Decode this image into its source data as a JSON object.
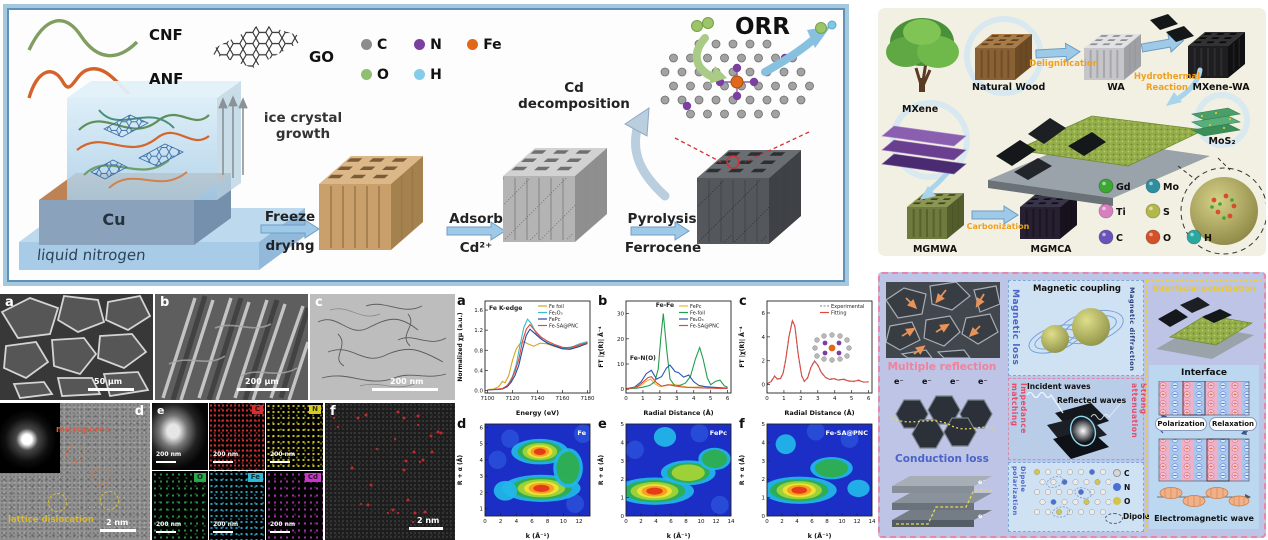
{
  "panel_synthesis": {
    "materials": {
      "cnf": "CNF",
      "anf": "ANF",
      "go": "GO"
    },
    "atom_legend": [
      {
        "symbol": "C",
        "color": "#8c8c8c"
      },
      {
        "symbol": "N",
        "color": "#7b3fa0"
      },
      {
        "symbol": "Fe",
        "color": "#e06818"
      },
      {
        "symbol": "O",
        "color": "#8fbf6f"
      },
      {
        "symbol": "H",
        "color": "#85cce8"
      }
    ],
    "scene": {
      "substrate": "Cu",
      "bath": "liquid nitrogen",
      "growth_line1": "ice crystal",
      "growth_line2": "growth"
    },
    "steps": [
      {
        "line1": "Freeze",
        "line2": "drying"
      },
      {
        "line1": "Adsorb",
        "line2": "Cd²⁺"
      },
      {
        "line1": "Pyrolysis",
        "line2": "Ferrocene"
      }
    ],
    "byproduct": {
      "line1": "Cd",
      "line2": "decomposition"
    },
    "reaction": "ORR"
  },
  "panel_micrographs": {
    "a": {
      "letter": "a",
      "scale_bar": "50 µm"
    },
    "b": {
      "letter": "b",
      "scale_bar": "200 µm"
    },
    "c": {
      "letter": "c",
      "scale_bar": "200 nm"
    },
    "d": {
      "letter": "d",
      "scale_bar": "2 nm",
      "annotation_top": "micropores",
      "annotation_bottom": "lattice dislocation"
    },
    "e": {
      "letter": "e",
      "scale_bar": "200 nm",
      "elements": [
        {
          "label": "C",
          "color": "#d23030"
        },
        {
          "label": "N",
          "color": "#d8cc20"
        },
        {
          "label": "O",
          "color": "#28a848"
        },
        {
          "label": "Fe",
          "color": "#30b8d8"
        },
        {
          "label": "Cd",
          "color": "#c838c8"
        }
      ]
    },
    "f": {
      "letter": "f",
      "scale_bar": "2 nm"
    }
  },
  "chart_data": [
    {
      "id": "a",
      "panel_letter": "a",
      "type": "line",
      "title": "Fe K-edge",
      "xlabel": "Energy (eV)",
      "ylabel": "Normalized χμ (a.u.)",
      "xlim": [
        7098,
        7182
      ],
      "ylim": [
        -0.05,
        1.78
      ],
      "xticks": [
        7100,
        7120,
        7140,
        7160,
        7180
      ],
      "yticks": [
        0,
        0.4,
        0.8,
        1.2,
        1.6
      ],
      "ytick_labels": [
        "0.0",
        "0.4",
        "0.8",
        "1.2",
        "1.6"
      ],
      "legend_position": "top-right",
      "grid": false,
      "series": [
        {
          "name": "Fe foil",
          "color": "#d8a520",
          "x": [
            7100,
            7105,
            7109,
            7112,
            7114,
            7117,
            7120,
            7123,
            7126,
            7129,
            7133,
            7137,
            7142,
            7147,
            7153,
            7159,
            7165,
            7172,
            7180
          ],
          "y": [
            0.02,
            0.03,
            0.08,
            0.18,
            0.15,
            0.3,
            0.6,
            0.83,
            0.93,
            0.97,
            0.92,
            0.88,
            0.94,
            0.93,
            0.88,
            0.84,
            0.83,
            0.87,
            0.93
          ]
        },
        {
          "name": "Fe₂O₃",
          "color": "#3bb8c9",
          "x": [
            7100,
            7110,
            7114,
            7117,
            7120,
            7123,
            7126,
            7129,
            7132,
            7135,
            7139,
            7144,
            7149,
            7155,
            7161,
            7168,
            7174,
            7180
          ],
          "y": [
            0.01,
            0.02,
            0.06,
            0.14,
            0.28,
            0.52,
            0.9,
            1.25,
            1.42,
            1.33,
            1.13,
            1.01,
            0.94,
            0.88,
            0.84,
            0.87,
            0.93,
            0.97
          ]
        },
        {
          "name": "FePc",
          "color": "#27489c",
          "x": [
            7100,
            7112,
            7116,
            7119,
            7122,
            7125,
            7128,
            7131,
            7134,
            7138,
            7143,
            7148,
            7154,
            7160,
            7166,
            7173,
            7180
          ],
          "y": [
            0.01,
            0.03,
            0.08,
            0.17,
            0.3,
            0.5,
            0.82,
            1.1,
            1.22,
            1.13,
            1.02,
            0.94,
            0.88,
            0.83,
            0.82,
            0.87,
            0.94
          ]
        },
        {
          "name": "Fe-SA@PNC",
          "color": "#d84a42",
          "x": [
            7100,
            7112,
            7116,
            7119,
            7122,
            7125,
            7128,
            7131,
            7134,
            7138,
            7143,
            7148,
            7154,
            7160,
            7166,
            7173,
            7180
          ],
          "y": [
            0.01,
            0.04,
            0.1,
            0.21,
            0.38,
            0.62,
            0.98,
            1.22,
            1.31,
            1.19,
            1.06,
            0.98,
            0.91,
            0.86,
            0.85,
            0.9,
            0.95
          ]
        }
      ]
    },
    {
      "id": "b",
      "panel_letter": "b",
      "type": "line",
      "xlabel": "Radial Distance (Å)",
      "ylabel": "FT |χ(R)| Å⁻⁴",
      "xlim": [
        0,
        6.2
      ],
      "ylim": [
        -1.5,
        35
      ],
      "xticks": [
        0,
        1,
        2,
        3,
        4,
        5,
        6
      ],
      "yticks": [
        0,
        10,
        20,
        30
      ],
      "legend_position": "top-right",
      "grid": false,
      "annotations": [
        {
          "text": "Fe-Fe",
          "x": 2.3,
          "y": 32.6
        },
        {
          "text": "Fe-N(O)",
          "x": 1.0,
          "y": 11.5
        }
      ],
      "series": [
        {
          "name": "FePc",
          "color": "#e8b838",
          "x": [
            0,
            0.5,
            0.9,
            1.2,
            1.45,
            1.7,
            2.0,
            2.4,
            2.8,
            3.2,
            3.6,
            4.0,
            4.5,
            5.0,
            5.5,
            6.0
          ],
          "y": [
            0.2,
            0.5,
            1.5,
            3.2,
            4.0,
            2.2,
            1.0,
            1.5,
            2.0,
            1.4,
            0.9,
            0.8,
            1.0,
            0.6,
            0.4,
            0.3
          ]
        },
        {
          "name": "Fe-foil",
          "color": "#1f9e4b",
          "x": [
            0,
            0.6,
            1.0,
            1.4,
            1.7,
            1.9,
            2.05,
            2.2,
            2.4,
            2.6,
            2.9,
            3.2,
            3.5,
            3.8,
            4.1,
            4.35,
            4.55,
            4.8,
            5.0,
            5.3,
            5.55,
            5.8,
            6.0
          ],
          "y": [
            0.2,
            0.4,
            0.8,
            1.5,
            3.0,
            8.0,
            20,
            30,
            16,
            4,
            1.2,
            1.6,
            2.4,
            5.0,
            12,
            16.5,
            12,
            4.5,
            1.8,
            3.2,
            3.6,
            1.4,
            0.8
          ]
        },
        {
          "name": "Fe₂O₃",
          "color": "#2b55b0",
          "x": [
            0,
            0.5,
            0.9,
            1.2,
            1.5,
            1.8,
            2.1,
            2.4,
            2.6,
            2.9,
            3.1,
            3.4,
            3.7,
            4.0,
            4.3,
            4.7,
            5.1,
            5.5,
            6.0
          ],
          "y": [
            0.2,
            0.8,
            3.0,
            6.2,
            7.5,
            4.0,
            5.0,
            8.5,
            9.6,
            7.0,
            6.6,
            4.8,
            5.6,
            3.0,
            1.5,
            1.0,
            0.8,
            0.6,
            0.4
          ]
        },
        {
          "name": "Fe-SA@PNC",
          "color": "#d84a42",
          "x": [
            0,
            0.4,
            0.7,
            1.0,
            1.3,
            1.5,
            1.8,
            2.1,
            2.5,
            2.9,
            3.3,
            3.7,
            4.1,
            4.6,
            5.1,
            5.6,
            6.0
          ],
          "y": [
            0.2,
            0.5,
            1.2,
            2.8,
            4.6,
            5.0,
            2.6,
            1.2,
            1.8,
            1.3,
            0.9,
            0.7,
            0.6,
            0.5,
            0.4,
            0.3,
            0.3
          ]
        }
      ]
    },
    {
      "id": "c",
      "panel_letter": "c",
      "type": "line",
      "xlabel": "Radial Distance (Å)",
      "ylabel": "FT |χ(R)| Å⁻⁴",
      "xlim": [
        0,
        6.2
      ],
      "ylim": [
        -0.7,
        7
      ],
      "xticks": [
        0,
        1,
        2,
        3,
        4,
        5,
        6
      ],
      "yticks": [
        0,
        2,
        4,
        6
      ],
      "legend_position": "top-right",
      "grid": false,
      "series": [
        {
          "name": "Experimental",
          "color": "#9a9a9a",
          "dash": true,
          "x": [
            0,
            0.25,
            0.45,
            0.6,
            0.8,
            0.95,
            1.1,
            1.3,
            1.5,
            1.65,
            1.85,
            2.05,
            2.2,
            2.4,
            2.6,
            2.8,
            3.0,
            3.2,
            3.45,
            3.7,
            3.95,
            4.2,
            4.5,
            4.8,
            5.1,
            5.4,
            5.7,
            6.0
          ],
          "y": [
            0.05,
            0.3,
            0.75,
            0.45,
            0.55,
            1.0,
            2.1,
            4.1,
            5.4,
            4.8,
            2.4,
            0.7,
            0.25,
            0.6,
            1.5,
            2.0,
            1.6,
            1.0,
            0.6,
            0.45,
            0.55,
            0.35,
            0.5,
            0.3,
            0.25,
            0.4,
            0.2,
            0.25
          ]
        },
        {
          "name": "Fitting",
          "color": "#d84a42",
          "x": [
            0,
            0.25,
            0.45,
            0.6,
            0.8,
            0.95,
            1.1,
            1.3,
            1.5,
            1.65,
            1.85,
            2.05,
            2.2,
            2.4,
            2.6,
            2.8,
            3.0,
            3.2,
            3.45,
            3.7,
            3.95,
            4.2,
            4.5,
            4.8,
            5.1,
            5.4,
            5.7,
            6.0
          ],
          "y": [
            0.08,
            0.25,
            0.7,
            0.5,
            0.5,
            0.95,
            2.0,
            4.0,
            5.35,
            4.9,
            2.5,
            0.75,
            0.3,
            0.55,
            1.45,
            1.95,
            1.65,
            1.05,
            0.62,
            0.42,
            0.5,
            0.38,
            0.45,
            0.32,
            0.28,
            0.35,
            0.22,
            0.22
          ]
        }
      ]
    },
    {
      "id": "d",
      "panel_letter": "d",
      "type": "heatmap",
      "label": "Fe",
      "xlabel": "k (Å⁻¹)",
      "ylabel": "R + α (Å)",
      "xlim": [
        0,
        13.4
      ],
      "ylim": [
        0.55,
        6.2
      ],
      "xticks": [
        0,
        2,
        4,
        6,
        8,
        10,
        12
      ],
      "yticks": [
        1,
        2,
        3,
        4,
        5,
        6
      ],
      "colormap": "jet",
      "spots": [
        {
          "x": 7.2,
          "y": 2.25,
          "rx": 3.7,
          "ry": 0.62,
          "level": 5
        },
        {
          "x": 7.0,
          "y": 4.5,
          "rx": 2.7,
          "ry": 0.58,
          "level": 5
        },
        {
          "x": 10.6,
          "y": 3.5,
          "rx": 1.4,
          "ry": 0.9,
          "level": 1
        },
        {
          "x": 2.6,
          "y": 2.1,
          "rx": 1.1,
          "ry": 0.45,
          "level": 0
        }
      ],
      "noise": [
        {
          "x": 3.2,
          "y": 5.3
        },
        {
          "x": 11.5,
          "y": 1.3
        },
        {
          "x": 1.6,
          "y": 4.0
        },
        {
          "x": 12.5,
          "y": 5.6
        }
      ]
    },
    {
      "id": "e",
      "panel_letter": "e",
      "type": "heatmap",
      "label": "FePc",
      "xlabel": "k (Å⁻¹)",
      "ylabel": "R + α (Å)",
      "xlim": [
        0,
        14
      ],
      "ylim": [
        0,
        5
      ],
      "xticks": [
        0,
        2,
        4,
        6,
        8,
        10,
        12,
        14
      ],
      "yticks": [
        0,
        1,
        2,
        3,
        4,
        5
      ],
      "colormap": "jet",
      "spots": [
        {
          "x": 3.8,
          "y": 1.35,
          "rx": 3.9,
          "ry": 0.55,
          "level": 5
        },
        {
          "x": 8.3,
          "y": 2.35,
          "rx": 2.7,
          "ry": 0.5,
          "level": 2
        },
        {
          "x": 11.8,
          "y": 3.1,
          "rx": 1.6,
          "ry": 0.45,
          "level": 1
        },
        {
          "x": 5.2,
          "y": 4.3,
          "rx": 1.1,
          "ry": 0.4,
          "level": 0
        }
      ],
      "noise": [
        {
          "x": 12.5,
          "y": 0.6
        },
        {
          "x": 1.2,
          "y": 3.6
        },
        {
          "x": 9.8,
          "y": 4.5
        }
      ]
    },
    {
      "id": "f",
      "panel_letter": "f",
      "type": "heatmap",
      "label": "Fe-SA@PNC",
      "xlabel": "k (Å⁻¹)",
      "ylabel": "R + α (Å)",
      "xlim": [
        0,
        14
      ],
      "ylim": [
        0,
        5
      ],
      "xticks": [
        0,
        2,
        4,
        6,
        8,
        10,
        12,
        14
      ],
      "yticks": [
        0,
        1,
        2,
        3,
        4,
        5
      ],
      "colormap": "jet",
      "spots": [
        {
          "x": 4.3,
          "y": 1.4,
          "rx": 3.7,
          "ry": 0.55,
          "level": 5
        },
        {
          "x": 8.6,
          "y": 2.6,
          "rx": 2.1,
          "ry": 0.45,
          "level": 1
        },
        {
          "x": 12.2,
          "y": 1.5,
          "rx": 1.1,
          "ry": 0.35,
          "level": 0
        },
        {
          "x": 2.5,
          "y": 3.9,
          "rx": 1.0,
          "ry": 0.4,
          "level": 0
        }
      ],
      "noise": [
        {
          "x": 11.0,
          "y": 4.2
        },
        {
          "x": 6.5,
          "y": 4.6
        }
      ]
    }
  ],
  "panel_wood": {
    "stages": {
      "natural_wood": "Natural Wood",
      "wa": "WA",
      "mxene_wa": "MXene-WA",
      "mgmwa": "MGMWA",
      "mgmca": "MGMCA"
    },
    "materials": {
      "mxene": "MXene",
      "mos2": "MoS₂"
    },
    "processes": {
      "delignification": "Delignification",
      "hydrothermal_line1": "Hydrothermal",
      "hydrothermal_line2": "Reaction",
      "carbonization": "Carbonization"
    },
    "atom_legend": [
      {
        "symbol": "Gd",
        "color": "#3aa832"
      },
      {
        "symbol": "Mo",
        "color": "#2e8f9e"
      },
      {
        "symbol": "Ti",
        "color": "#d87fc0"
      },
      {
        "symbol": "S",
        "color": "#b2b84a"
      },
      {
        "symbol": "C",
        "color": "#6a52b8"
      },
      {
        "symbol": "O",
        "color": "#d4502a"
      },
      {
        "symbol": "H",
        "color": "#2aa8a0"
      }
    ]
  },
  "panel_mechanism": {
    "labels": {
      "multiple_reflection": "Multiple reflection",
      "magnetic_loss": "Magnetic loss",
      "magnetic_coupling": "Magnetic coupling",
      "magnetic_diffraction": "Magnetic diffraction",
      "interfacial_polarization": "Interfacial polarization",
      "impedance_matching": "Impedance matching",
      "incident_waves": "Incident waves",
      "reflected_waves": "Reflected waves",
      "strong_attenuation": "Strong attenuation",
      "conduction_loss": "Conduction loss",
      "dipole_polarization": "Dipole polarization",
      "interface": "Interface",
      "polarization": "Polarization",
      "relaxation": "Relaxation",
      "electromagnetic_wave": "Electromagnetic wave",
      "dipoles": "Dipoles",
      "electron": "e⁻"
    },
    "atom_legend": [
      {
        "symbol": "C",
        "color": "#d8d8d8"
      },
      {
        "symbol": "N",
        "color": "#4a6fd4"
      },
      {
        "symbol": "O",
        "color": "#d4c44a"
      }
    ]
  }
}
